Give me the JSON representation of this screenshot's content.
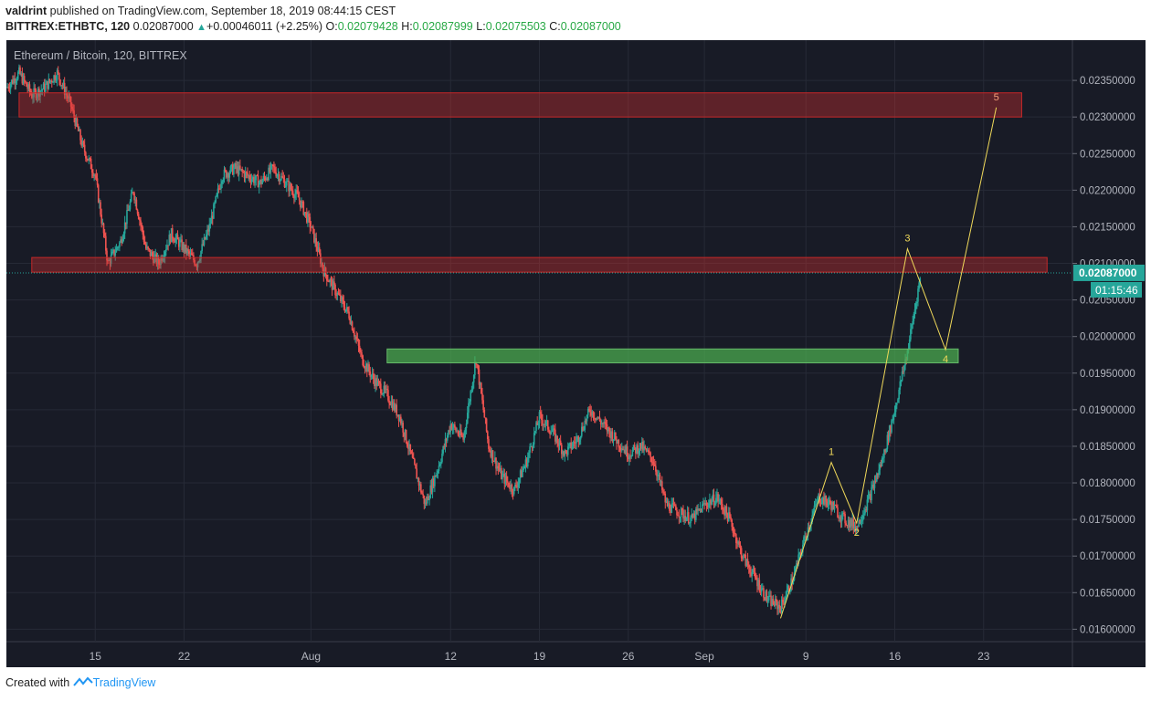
{
  "header": {
    "author": "valdrint",
    "published_text": "published on TradingView.com, September 18, 2019 08:44:15 CEST",
    "symbol": "BITTREX:ETHBTC, 120",
    "last": "0.02087000",
    "change_icon": "triangle-up-icon",
    "change_text": "+0.00046011 (+2.25%)",
    "open_label": "O:",
    "open": "0.02079428",
    "high_label": "H:",
    "high": "0.02087999",
    "low_label": "L:",
    "low": "0.02075503",
    "close_label": "C:",
    "close": "0.02087000"
  },
  "footer": {
    "created_with": "Created with",
    "brand": "TradingView",
    "brand_icon": "tradingview-logo-icon"
  },
  "colors": {
    "background": "#181b26",
    "grid": "#262a36",
    "up": "#26a69a",
    "down": "#ef5350",
    "resistance": "#d32f2f",
    "support": "#4caf50",
    "wave": "#f0d95a",
    "price_label_bg": "#26a69a"
  },
  "chart_data": {
    "type": "candlestick",
    "title": "Ethereum / Bitcoin, 120, BITTREX",
    "x_axis_type": "date",
    "x_ticks": [
      {
        "label": "15",
        "date": "2019-07-15"
      },
      {
        "label": "22",
        "date": "2019-07-22"
      },
      {
        "label": "Aug",
        "date": "2019-08-01"
      },
      {
        "label": "12",
        "date": "2019-08-12"
      },
      {
        "label": "19",
        "date": "2019-08-19"
      },
      {
        "label": "26",
        "date": "2019-08-26"
      },
      {
        "label": "Sep",
        "date": "2019-09-01"
      },
      {
        "label": "9",
        "date": "2019-09-09"
      },
      {
        "label": "16",
        "date": "2019-09-16"
      },
      {
        "label": "23",
        "date": "2019-09-23"
      }
    ],
    "xlim": [
      "2019-07-08",
      "2019-09-30"
    ],
    "ylim": [
      0.01583,
      0.02405
    ],
    "y_ticks": [
      "0.01600000",
      "0.01650000",
      "0.01700000",
      "0.01750000",
      "0.01800000",
      "0.01850000",
      "0.01900000",
      "0.01950000",
      "0.02000000",
      "0.02050000",
      "0.02100000",
      "0.02150000",
      "0.02200000",
      "0.02250000",
      "0.02300000",
      "0.02350000"
    ],
    "last_price": "0.02087000",
    "countdown": "01:15:46",
    "grid": true,
    "price_path": [
      {
        "date": "2019-07-08",
        "price": 0.0234
      },
      {
        "date": "2019-07-09",
        "price": 0.0236
      },
      {
        "date": "2019-07-10",
        "price": 0.0233
      },
      {
        "date": "2019-07-11",
        "price": 0.0234
      },
      {
        "date": "2019-07-12",
        "price": 0.0236
      },
      {
        "date": "2019-07-13",
        "price": 0.0232
      },
      {
        "date": "2019-07-14",
        "price": 0.0226
      },
      {
        "date": "2019-07-15",
        "price": 0.0222
      },
      {
        "date": "2019-07-16",
        "price": 0.021
      },
      {
        "date": "2019-07-17",
        "price": 0.0213
      },
      {
        "date": "2019-07-18",
        "price": 0.022
      },
      {
        "date": "2019-07-19",
        "price": 0.0212
      },
      {
        "date": "2019-07-20",
        "price": 0.021
      },
      {
        "date": "2019-07-21",
        "price": 0.0214
      },
      {
        "date": "2019-07-22",
        "price": 0.0212
      },
      {
        "date": "2019-07-23",
        "price": 0.021
      },
      {
        "date": "2019-07-24",
        "price": 0.0215
      },
      {
        "date": "2019-07-25",
        "price": 0.0222
      },
      {
        "date": "2019-07-26",
        "price": 0.0223
      },
      {
        "date": "2019-07-27",
        "price": 0.0222
      },
      {
        "date": "2019-07-28",
        "price": 0.0221
      },
      {
        "date": "2019-07-29",
        "price": 0.0223
      },
      {
        "date": "2019-07-30",
        "price": 0.0221
      },
      {
        "date": "2019-07-31",
        "price": 0.0219
      },
      {
        "date": "2019-08-01",
        "price": 0.0215
      },
      {
        "date": "2019-08-02",
        "price": 0.0209
      },
      {
        "date": "2019-08-03",
        "price": 0.0206
      },
      {
        "date": "2019-08-04",
        "price": 0.0203
      },
      {
        "date": "2019-08-05",
        "price": 0.0197
      },
      {
        "date": "2019-08-06",
        "price": 0.0194
      },
      {
        "date": "2019-08-07",
        "price": 0.0192
      },
      {
        "date": "2019-08-08",
        "price": 0.0189
      },
      {
        "date": "2019-08-09",
        "price": 0.0183
      },
      {
        "date": "2019-08-10",
        "price": 0.0177
      },
      {
        "date": "2019-08-11",
        "price": 0.0182
      },
      {
        "date": "2019-08-12",
        "price": 0.0188
      },
      {
        "date": "2019-08-13",
        "price": 0.0186
      },
      {
        "date": "2019-08-14",
        "price": 0.0197
      },
      {
        "date": "2019-08-15",
        "price": 0.0185
      },
      {
        "date": "2019-08-16",
        "price": 0.0181
      },
      {
        "date": "2019-08-17",
        "price": 0.0179
      },
      {
        "date": "2019-08-18",
        "price": 0.0183
      },
      {
        "date": "2019-08-19",
        "price": 0.0189
      },
      {
        "date": "2019-08-20",
        "price": 0.0187
      },
      {
        "date": "2019-08-21",
        "price": 0.0184
      },
      {
        "date": "2019-08-22",
        "price": 0.0186
      },
      {
        "date": "2019-08-23",
        "price": 0.019
      },
      {
        "date": "2019-08-24",
        "price": 0.0188
      },
      {
        "date": "2019-08-25",
        "price": 0.0186
      },
      {
        "date": "2019-08-26",
        "price": 0.0184
      },
      {
        "date": "2019-08-27",
        "price": 0.0185
      },
      {
        "date": "2019-08-28",
        "price": 0.0183
      },
      {
        "date": "2019-08-29",
        "price": 0.0177
      },
      {
        "date": "2019-08-30",
        "price": 0.0176
      },
      {
        "date": "2019-08-31",
        "price": 0.0175
      },
      {
        "date": "2019-09-01",
        "price": 0.0177
      },
      {
        "date": "2019-09-02",
        "price": 0.0178
      },
      {
        "date": "2019-09-03",
        "price": 0.0175
      },
      {
        "date": "2019-09-04",
        "price": 0.017
      },
      {
        "date": "2019-09-05",
        "price": 0.0167
      },
      {
        "date": "2019-09-06",
        "price": 0.0164
      },
      {
        "date": "2019-09-07",
        "price": 0.0163
      },
      {
        "date": "2019-09-08",
        "price": 0.0167
      },
      {
        "date": "2019-09-09",
        "price": 0.0173
      },
      {
        "date": "2019-09-10",
        "price": 0.0178
      },
      {
        "date": "2019-09-11",
        "price": 0.0177
      },
      {
        "date": "2019-09-12",
        "price": 0.0175
      },
      {
        "date": "2019-09-13",
        "price": 0.0174
      },
      {
        "date": "2019-09-14",
        "price": 0.0178
      },
      {
        "date": "2019-09-15",
        "price": 0.0183
      },
      {
        "date": "2019-09-16",
        "price": 0.019
      },
      {
        "date": "2019-09-17",
        "price": 0.0198
      },
      {
        "date": "2019-09-18",
        "price": 0.0208
      }
    ],
    "zones": [
      {
        "type": "resistance",
        "from": "2019-07-09",
        "to": "2019-09-26",
        "low": 0.023,
        "high": 0.02333
      },
      {
        "type": "resistance",
        "from": "2019-07-10",
        "to": "2019-09-28",
        "low": 0.02088,
        "high": 0.02108
      },
      {
        "type": "support",
        "from": "2019-08-07",
        "to": "2019-09-21",
        "low": 0.01964,
        "high": 0.01983
      }
    ],
    "wave_points": [
      {
        "label": "",
        "date": "2019-09-07",
        "price": 0.01615
      },
      {
        "label": "1",
        "date": "2019-09-11",
        "price": 0.01828
      },
      {
        "label": "2",
        "date": "2019-09-13",
        "price": 0.01745
      },
      {
        "label": "3",
        "date": "2019-09-17",
        "price": 0.0212
      },
      {
        "label": "4",
        "date": "2019-09-20",
        "price": 0.01982
      },
      {
        "label": "5",
        "date": "2019-09-24",
        "price": 0.02313
      }
    ]
  }
}
